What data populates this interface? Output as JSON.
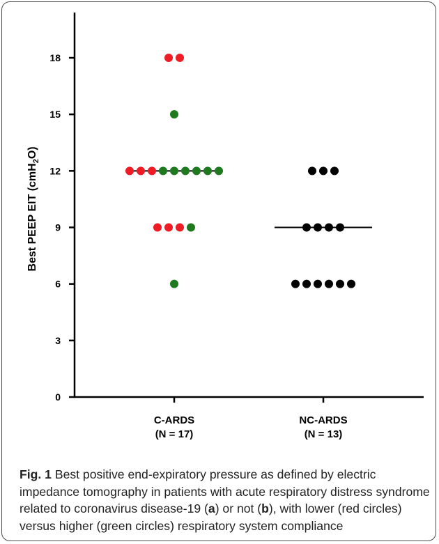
{
  "chart_data": {
    "type": "scatter",
    "ylabel_main": "Best PEEP EIT (cmH",
    "ylabel_sub": "2",
    "ylabel_end": "O)",
    "ylim": [
      0,
      20
    ],
    "yticks": [
      0,
      3,
      6,
      9,
      12,
      15,
      18
    ],
    "categories": [
      {
        "line1": "C-ARDS",
        "line2": "(N = 17)"
      },
      {
        "line1": "NC-ARDS",
        "line2": "(N = 13)"
      }
    ],
    "groups": [
      {
        "category_index": 0,
        "median": 12,
        "points": [
          {
            "y": 18,
            "color": "red"
          },
          {
            "y": 18,
            "color": "red"
          },
          {
            "y": 15,
            "color": "green"
          },
          {
            "y": 12,
            "color": "red"
          },
          {
            "y": 12,
            "color": "red"
          },
          {
            "y": 12,
            "color": "red"
          },
          {
            "y": 12,
            "color": "green"
          },
          {
            "y": 12,
            "color": "green"
          },
          {
            "y": 12,
            "color": "green"
          },
          {
            "y": 12,
            "color": "green"
          },
          {
            "y": 12,
            "color": "green"
          },
          {
            "y": 12,
            "color": "green"
          },
          {
            "y": 9,
            "color": "red"
          },
          {
            "y": 9,
            "color": "red"
          },
          {
            "y": 9,
            "color": "red"
          },
          {
            "y": 9,
            "color": "green"
          },
          {
            "y": 6,
            "color": "green"
          }
        ]
      },
      {
        "category_index": 1,
        "median": 9,
        "points": [
          {
            "y": 12,
            "color": "black"
          },
          {
            "y": 12,
            "color": "black"
          },
          {
            "y": 12,
            "color": "black"
          },
          {
            "y": 9,
            "color": "black"
          },
          {
            "y": 9,
            "color": "black"
          },
          {
            "y": 9,
            "color": "black"
          },
          {
            "y": 9,
            "color": "black"
          },
          {
            "y": 6,
            "color": "black"
          },
          {
            "y": 6,
            "color": "black"
          },
          {
            "y": 6,
            "color": "black"
          },
          {
            "y": 6,
            "color": "black"
          },
          {
            "y": 6,
            "color": "black"
          },
          {
            "y": 6,
            "color": "black"
          }
        ]
      }
    ],
    "colors": {
      "red": "#ee1c25",
      "green": "#1f7a1f",
      "black": "#000000"
    },
    "grid": false
  },
  "caption": {
    "label": "Fig. 1",
    "text_1": "  Best positive end-expiratory pressure as defined by electric impedance tomography in patients with acute respiratory distress syndrome related to coronavirus disease-19 (",
    "a": "a",
    "text_2": ") or not (",
    "b": "b",
    "text_3": "), with lower (red circles) versus higher (green circles) respiratory system compliance"
  }
}
